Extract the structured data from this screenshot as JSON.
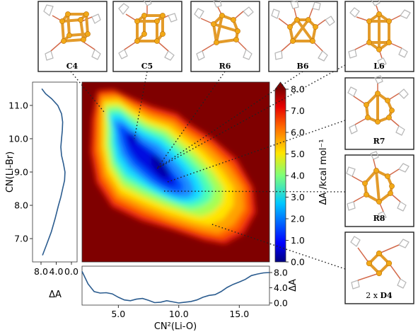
{
  "chart_data": [
    {
      "type": "heatmap",
      "xlabel": "CN²(Li-O)",
      "ylabel": "CN(Li-Br)",
      "xlim": [
        2.0,
        17.5
      ],
      "ylim": [
        6.3,
        11.7
      ],
      "x_ticks": [
        "5.0",
        "10.0",
        "15.0"
      ],
      "y_ticks": [
        "7.0",
        "8.0",
        "9.0",
        "10.0",
        "11.0"
      ],
      "colorbar": {
        "label": "ΔA /kcal mol⁻¹",
        "range": [
          0.0,
          8.0
        ],
        "ticks": [
          "0.0",
          "1.0",
          "2.0",
          "3.0",
          "4.0",
          "5.0",
          "6.0",
          "7.0",
          "8.0"
        ]
      },
      "minima": [
        {
          "label": "C4",
          "x": 3.5,
          "y": 10.8
        },
        {
          "label": "C5",
          "x": 6.0,
          "y": 9.9
        },
        {
          "label": "R6",
          "x": 8.0,
          "y": 9.2
        },
        {
          "label": "B6",
          "x": 8.0,
          "y": 9.2
        },
        {
          "label": "L6",
          "x": 8.0,
          "y": 9.2
        },
        {
          "label": "R7",
          "x": 9.2,
          "y": 8.6
        },
        {
          "label": "R8",
          "x": 9.0,
          "y": 8.3
        },
        {
          "label": "2 x D4",
          "x": 13.0,
          "y": 7.5
        }
      ]
    },
    {
      "type": "line",
      "name": "left-marginal",
      "xlabel": "ΔA",
      "x_ticks": [
        "8.0",
        "4.0",
        "0.0"
      ],
      "xlim": [
        0.0,
        9.0
      ],
      "x": [
        7.8,
        6.8,
        5.2,
        3.6,
        2.6,
        2.3,
        2.4,
        2.6,
        2.8,
        2.6,
        2.1,
        1.7,
        1.8,
        2.3,
        2.8,
        3.4,
        4.3,
        5.3,
        6.6,
        7.6
      ],
      "y": [
        11.5,
        11.35,
        11.2,
        11.0,
        10.75,
        10.5,
        10.25,
        10.0,
        9.75,
        9.5,
        9.25,
        9.0,
        8.75,
        8.5,
        8.25,
        8.0,
        7.6,
        7.2,
        6.8,
        6.5
      ]
    },
    {
      "type": "line",
      "name": "bottom-marginal",
      "ylabel": "ΔA",
      "y_ticks": [
        "0.0",
        "4.0",
        "8.0"
      ],
      "ylim": [
        0.0,
        9.0
      ],
      "x": [
        2.0,
        2.5,
        3.0,
        3.5,
        4.0,
        4.5,
        5.0,
        5.5,
        6.0,
        6.5,
        7.0,
        7.5,
        8.0,
        8.5,
        9.0,
        9.5,
        10.0,
        10.5,
        11.0,
        11.5,
        12.0,
        12.5,
        13.0,
        13.5,
        14.0,
        14.5,
        15.0,
        15.5,
        16.0,
        16.5,
        17.0,
        17.5
      ],
      "y": [
        8.3,
        5.0,
        3.0,
        2.6,
        2.7,
        2.4,
        1.5,
        0.8,
        0.6,
        1.0,
        1.2,
        0.7,
        0.1,
        0.2,
        0.6,
        0.3,
        0.0,
        0.2,
        0.4,
        0.8,
        1.5,
        2.0,
        2.2,
        3.0,
        4.1,
        4.9,
        5.5,
        6.2,
        7.2,
        7.6,
        7.9,
        8.0
      ]
    }
  ],
  "structures": [
    {
      "label": "C4"
    },
    {
      "label": "C5"
    },
    {
      "label": "R6"
    },
    {
      "label": "B6"
    },
    {
      "label": "L6"
    },
    {
      "label": "R7"
    },
    {
      "label": "R8"
    },
    {
      "label_prefix": "2 x ",
      "label": "D4"
    }
  ],
  "colors": {
    "background": "#7f0000",
    "curve": "#2b5c8f",
    "bond": "#e39b2a",
    "atom": "#f2a917"
  }
}
